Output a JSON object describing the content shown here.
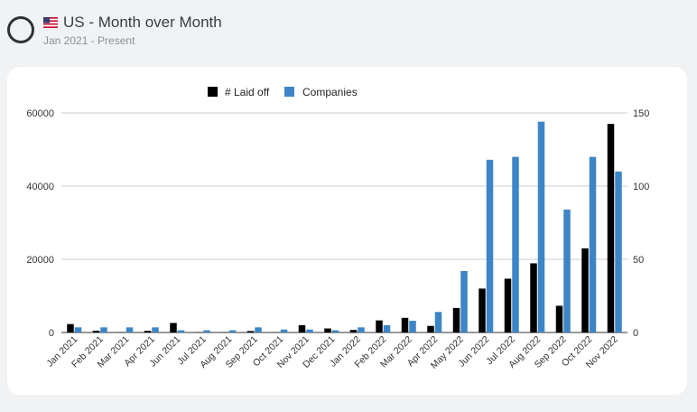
{
  "header": {
    "title": "US - Month over Month",
    "subtitle": "Jan 2021 - Present"
  },
  "colors": {
    "laid_off": "#000000",
    "companies": "#3d85c6",
    "grid": "#cccccc"
  },
  "chart_data": {
    "type": "bar",
    "legend": "top-left",
    "grid": true,
    "categories": [
      "Jan 2021",
      "Feb 2021",
      "Mar 2021",
      "Apr 2021",
      "Jun 2021",
      "Jul 2021",
      "Aug 2021",
      "Sep 2021",
      "Oct 2021",
      "Nov 2021",
      "Dec 2021",
      "Jan 2022",
      "Feb 2022",
      "Mar 2022",
      "Apr 2022",
      "May 2022",
      "Jun 2022",
      "Jul 2022",
      "Aug 2022",
      "Sep 2022",
      "Oct 2022",
      "Nov 2022"
    ],
    "series": [
      {
        "name": "# Laid off",
        "axis": "left",
        "values": [
          2300,
          500,
          100,
          450,
          2600,
          100,
          100,
          400,
          50,
          2000,
          1100,
          700,
          3300,
          4000,
          1800,
          6700,
          12000,
          14700,
          18900,
          7300,
          23000,
          57000
        ]
      },
      {
        "name": "Companies",
        "axis": "right",
        "values": [
          3.5,
          3.5,
          3.5,
          3.5,
          1.5,
          1.5,
          1.5,
          3.5,
          2,
          2,
          1.5,
          3.5,
          5,
          8,
          14,
          42,
          118,
          120,
          144,
          84,
          120,
          110
        ]
      }
    ],
    "y_left": {
      "range": [
        0,
        60000
      ],
      "ticks": [
        0,
        20000,
        40000,
        60000
      ]
    },
    "y_right": {
      "range": [
        0,
        150
      ],
      "ticks": [
        0,
        50,
        100,
        150
      ]
    }
  }
}
